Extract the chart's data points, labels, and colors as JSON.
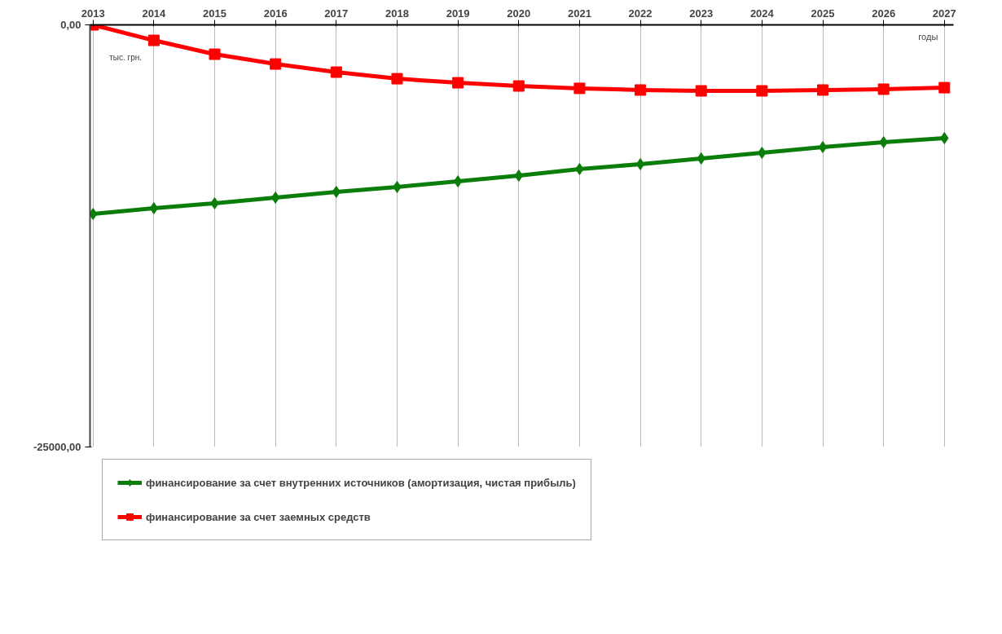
{
  "chart_data": {
    "type": "line",
    "categories": [
      "2013",
      "2014",
      "2015",
      "2016",
      "2017",
      "2018",
      "2019",
      "2020",
      "2021",
      "2022",
      "2023",
      "2024",
      "2025",
      "2026",
      "2027"
    ],
    "xlabel": "годы",
    "ylabel": "тыс. грн.",
    "series": [
      {
        "name": "финансирование за счет внутренних источников (амортизация, чистая прибыль)",
        "color": "#0a7d0a",
        "marker": "diamond",
        "values": [
          -11200,
          -10860,
          -10570,
          -10230,
          -9890,
          -9600,
          -9270,
          -8930,
          -8540,
          -8250,
          -7910,
          -7580,
          -7240,
          -6950,
          -6710
        ]
      },
      {
        "name": "финансирование за счет заемных средств",
        "color": "#ff0000",
        "marker": "square",
        "values": [
          0,
          -920,
          -1740,
          -2320,
          -2800,
          -3190,
          -3430,
          -3620,
          -3760,
          -3860,
          -3910,
          -3910,
          -3860,
          -3810,
          -3720
        ]
      }
    ],
    "ylim": [
      -25000,
      0
    ],
    "yticks": [
      {
        "value": 0,
        "label": "0,00"
      },
      {
        "value": -25000,
        "label": "-25000,00"
      }
    ],
    "grid": "x",
    "legend": "bottom",
    "line_style": "solid"
  }
}
